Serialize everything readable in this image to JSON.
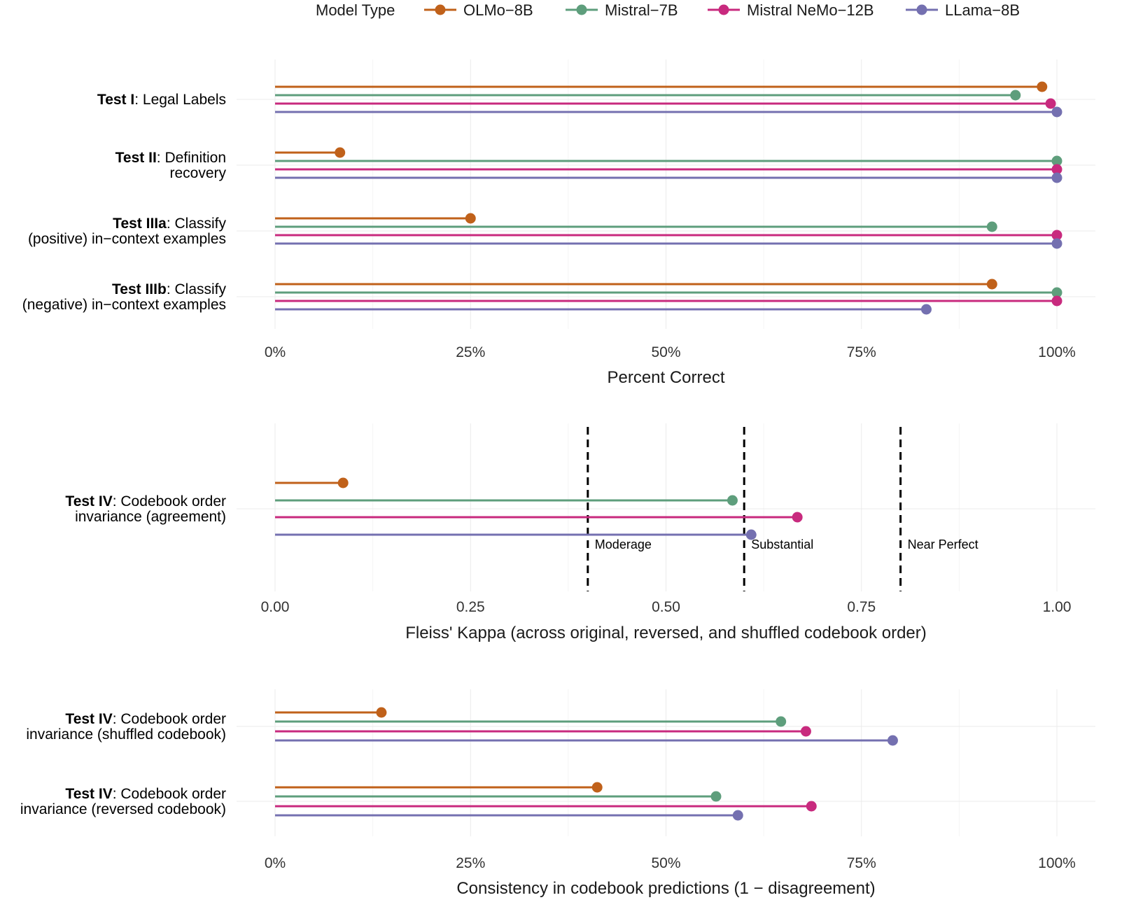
{
  "legend": {
    "title": "Model Type",
    "position": "top",
    "items": [
      {
        "name": "OLMo−8B",
        "color": "#C0611A"
      },
      {
        "name": "Mistral−7B",
        "color": "#5E9E7C"
      },
      {
        "name": "Mistral NeMo−12B",
        "color": "#C82A7E"
      },
      {
        "name": "LLama−8B",
        "color": "#7470B0"
      }
    ]
  },
  "chart_data": [
    {
      "type": "lollipop",
      "xlabel": "Percent Correct",
      "xlim": [
        0,
        100
      ],
      "ticks": [
        0,
        25,
        50,
        75,
        100
      ],
      "tick_labels": [
        "0%",
        "25%",
        "50%",
        "75%",
        "100%"
      ],
      "categories": [
        {
          "bold": "Test I",
          "line1": ": Legal Labels",
          "line2": ""
        },
        {
          "bold": "Test II",
          "line1": ": Definition",
          "line2": "recovery"
        },
        {
          "bold": "Test IIIa",
          "line1": ": Classify",
          "line2": "(positive) in−context examples"
        },
        {
          "bold": "Test IIIb",
          "line1": ": Classify",
          "line2": "(negative) in−context examples"
        }
      ],
      "series": [
        {
          "name": "OLMo−8B",
          "values": [
            98.1,
            8.3,
            25.0,
            91.7
          ]
        },
        {
          "name": "Mistral−7B",
          "values": [
            94.7,
            100,
            91.7,
            100
          ]
        },
        {
          "name": "Mistral NeMo−12B",
          "values": [
            99.2,
            100,
            100,
            100
          ]
        },
        {
          "name": "LLama−8B",
          "values": [
            100,
            100,
            100,
            83.3
          ]
        }
      ]
    },
    {
      "type": "lollipop",
      "xlabel": "Fleiss' Kappa (across original, reversed, and shuffled codebook order)",
      "xlim": [
        0,
        1
      ],
      "ticks": [
        0,
        0.25,
        0.5,
        0.75,
        1
      ],
      "tick_labels": [
        "0.00",
        "0.25",
        "0.50",
        "0.75",
        "1.00"
      ],
      "categories": [
        {
          "bold": "Test IV",
          "line1": ": Codebook order",
          "line2": "invariance (agreement)"
        }
      ],
      "series": [
        {
          "name": "OLMo−8B",
          "values": [
            0.087
          ]
        },
        {
          "name": "Mistral−7B",
          "values": [
            0.585
          ]
        },
        {
          "name": "Mistral NeMo−12B",
          "values": [
            0.668
          ]
        },
        {
          "name": "LLama−8B",
          "values": [
            0.609
          ]
        }
      ],
      "reference_lines": [
        {
          "value": 0.4,
          "label": "Moderage"
        },
        {
          "value": 0.6,
          "label": "Substantial"
        },
        {
          "value": 0.8,
          "label": "Near Perfect"
        }
      ]
    },
    {
      "type": "lollipop",
      "xlabel": "Consistency in codebook predictions (1 − disagreement)",
      "xlim": [
        0,
        100
      ],
      "ticks": [
        0,
        25,
        50,
        75,
        100
      ],
      "tick_labels": [
        "0%",
        "25%",
        "50%",
        "75%",
        "100%"
      ],
      "categories": [
        {
          "bold": "Test IV",
          "line1": ": Codebook order",
          "line2": "invariance (shuffled codebook)"
        },
        {
          "bold": "Test IV",
          "line1": ": Codebook order",
          "line2": "invariance (reversed codebook)"
        }
      ],
      "series": [
        {
          "name": "OLMo−8B",
          "values": [
            13.6,
            41.2
          ]
        },
        {
          "name": "Mistral−7B",
          "values": [
            64.7,
            56.4
          ]
        },
        {
          "name": "Mistral NeMo−12B",
          "values": [
            67.9,
            68.6
          ]
        },
        {
          "name": "LLama−8B",
          "values": [
            79.0,
            59.2
          ]
        }
      ]
    }
  ]
}
